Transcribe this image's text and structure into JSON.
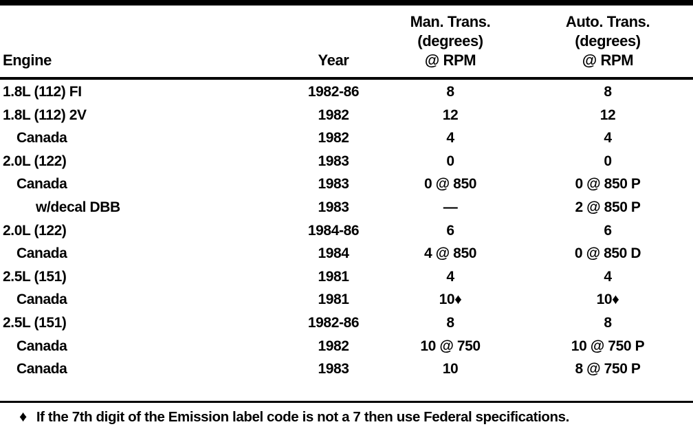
{
  "colors": {
    "text": "#000000",
    "background": "#ffffff",
    "rule": "#000000"
  },
  "table": {
    "header": {
      "engine": "Engine",
      "year": "Year",
      "man_trans": {
        "line1": "Man. Trans.",
        "line2": "(degrees)",
        "line3": "@ RPM"
      },
      "auto_trans": {
        "line1": "Auto. Trans.",
        "line2": "(degrees)",
        "line3": "@ RPM"
      }
    },
    "rows": [
      {
        "engine": "1.8L (112) FI",
        "indent": 0,
        "year": "1982-86",
        "man_trans": "8",
        "auto_trans": "8"
      },
      {
        "engine": "1.8L (112) 2V",
        "indent": 0,
        "year": "1982",
        "man_trans": "12",
        "auto_trans": "12"
      },
      {
        "engine": "Canada",
        "indent": 1,
        "year": "1982",
        "man_trans": "4",
        "auto_trans": "4"
      },
      {
        "engine": "2.0L (122)",
        "indent": 0,
        "year": "1983",
        "man_trans": "0",
        "auto_trans": "0"
      },
      {
        "engine": "Canada",
        "indent": 1,
        "year": "1983",
        "man_trans": "0 @ 850",
        "auto_trans": "0 @ 850 P"
      },
      {
        "engine": "w/decal DBB",
        "indent": 2,
        "year": "1983",
        "man_trans": "—",
        "auto_trans": "2 @ 850 P"
      },
      {
        "engine": "2.0L (122)",
        "indent": 0,
        "year": "1984-86",
        "man_trans": "6",
        "auto_trans": "6"
      },
      {
        "engine": "Canada",
        "indent": 1,
        "year": "1984",
        "man_trans": "4 @ 850",
        "auto_trans": "0 @ 850 D"
      },
      {
        "engine": "2.5L (151)",
        "indent": 0,
        "year": "1981",
        "man_trans": "4",
        "auto_trans": "4"
      },
      {
        "engine": "Canada",
        "indent": 1,
        "year": "1981",
        "man_trans": "10♦",
        "auto_trans": "10♦"
      },
      {
        "engine": "2.5L (151)",
        "indent": 0,
        "year": "1982-86",
        "man_trans": "8",
        "auto_trans": "8"
      },
      {
        "engine": "Canada",
        "indent": 1,
        "year": "1982",
        "man_trans": "10 @ 750",
        "auto_trans": "10 @ 750 P"
      },
      {
        "engine": "Canada",
        "indent": 1,
        "year": "1983",
        "man_trans": "10",
        "auto_trans": "8 @ 750 P"
      }
    ]
  },
  "footnote": {
    "marker": "♦",
    "text": "If the 7th digit of the Emission label code is not a 7 then use Federal specifications."
  }
}
